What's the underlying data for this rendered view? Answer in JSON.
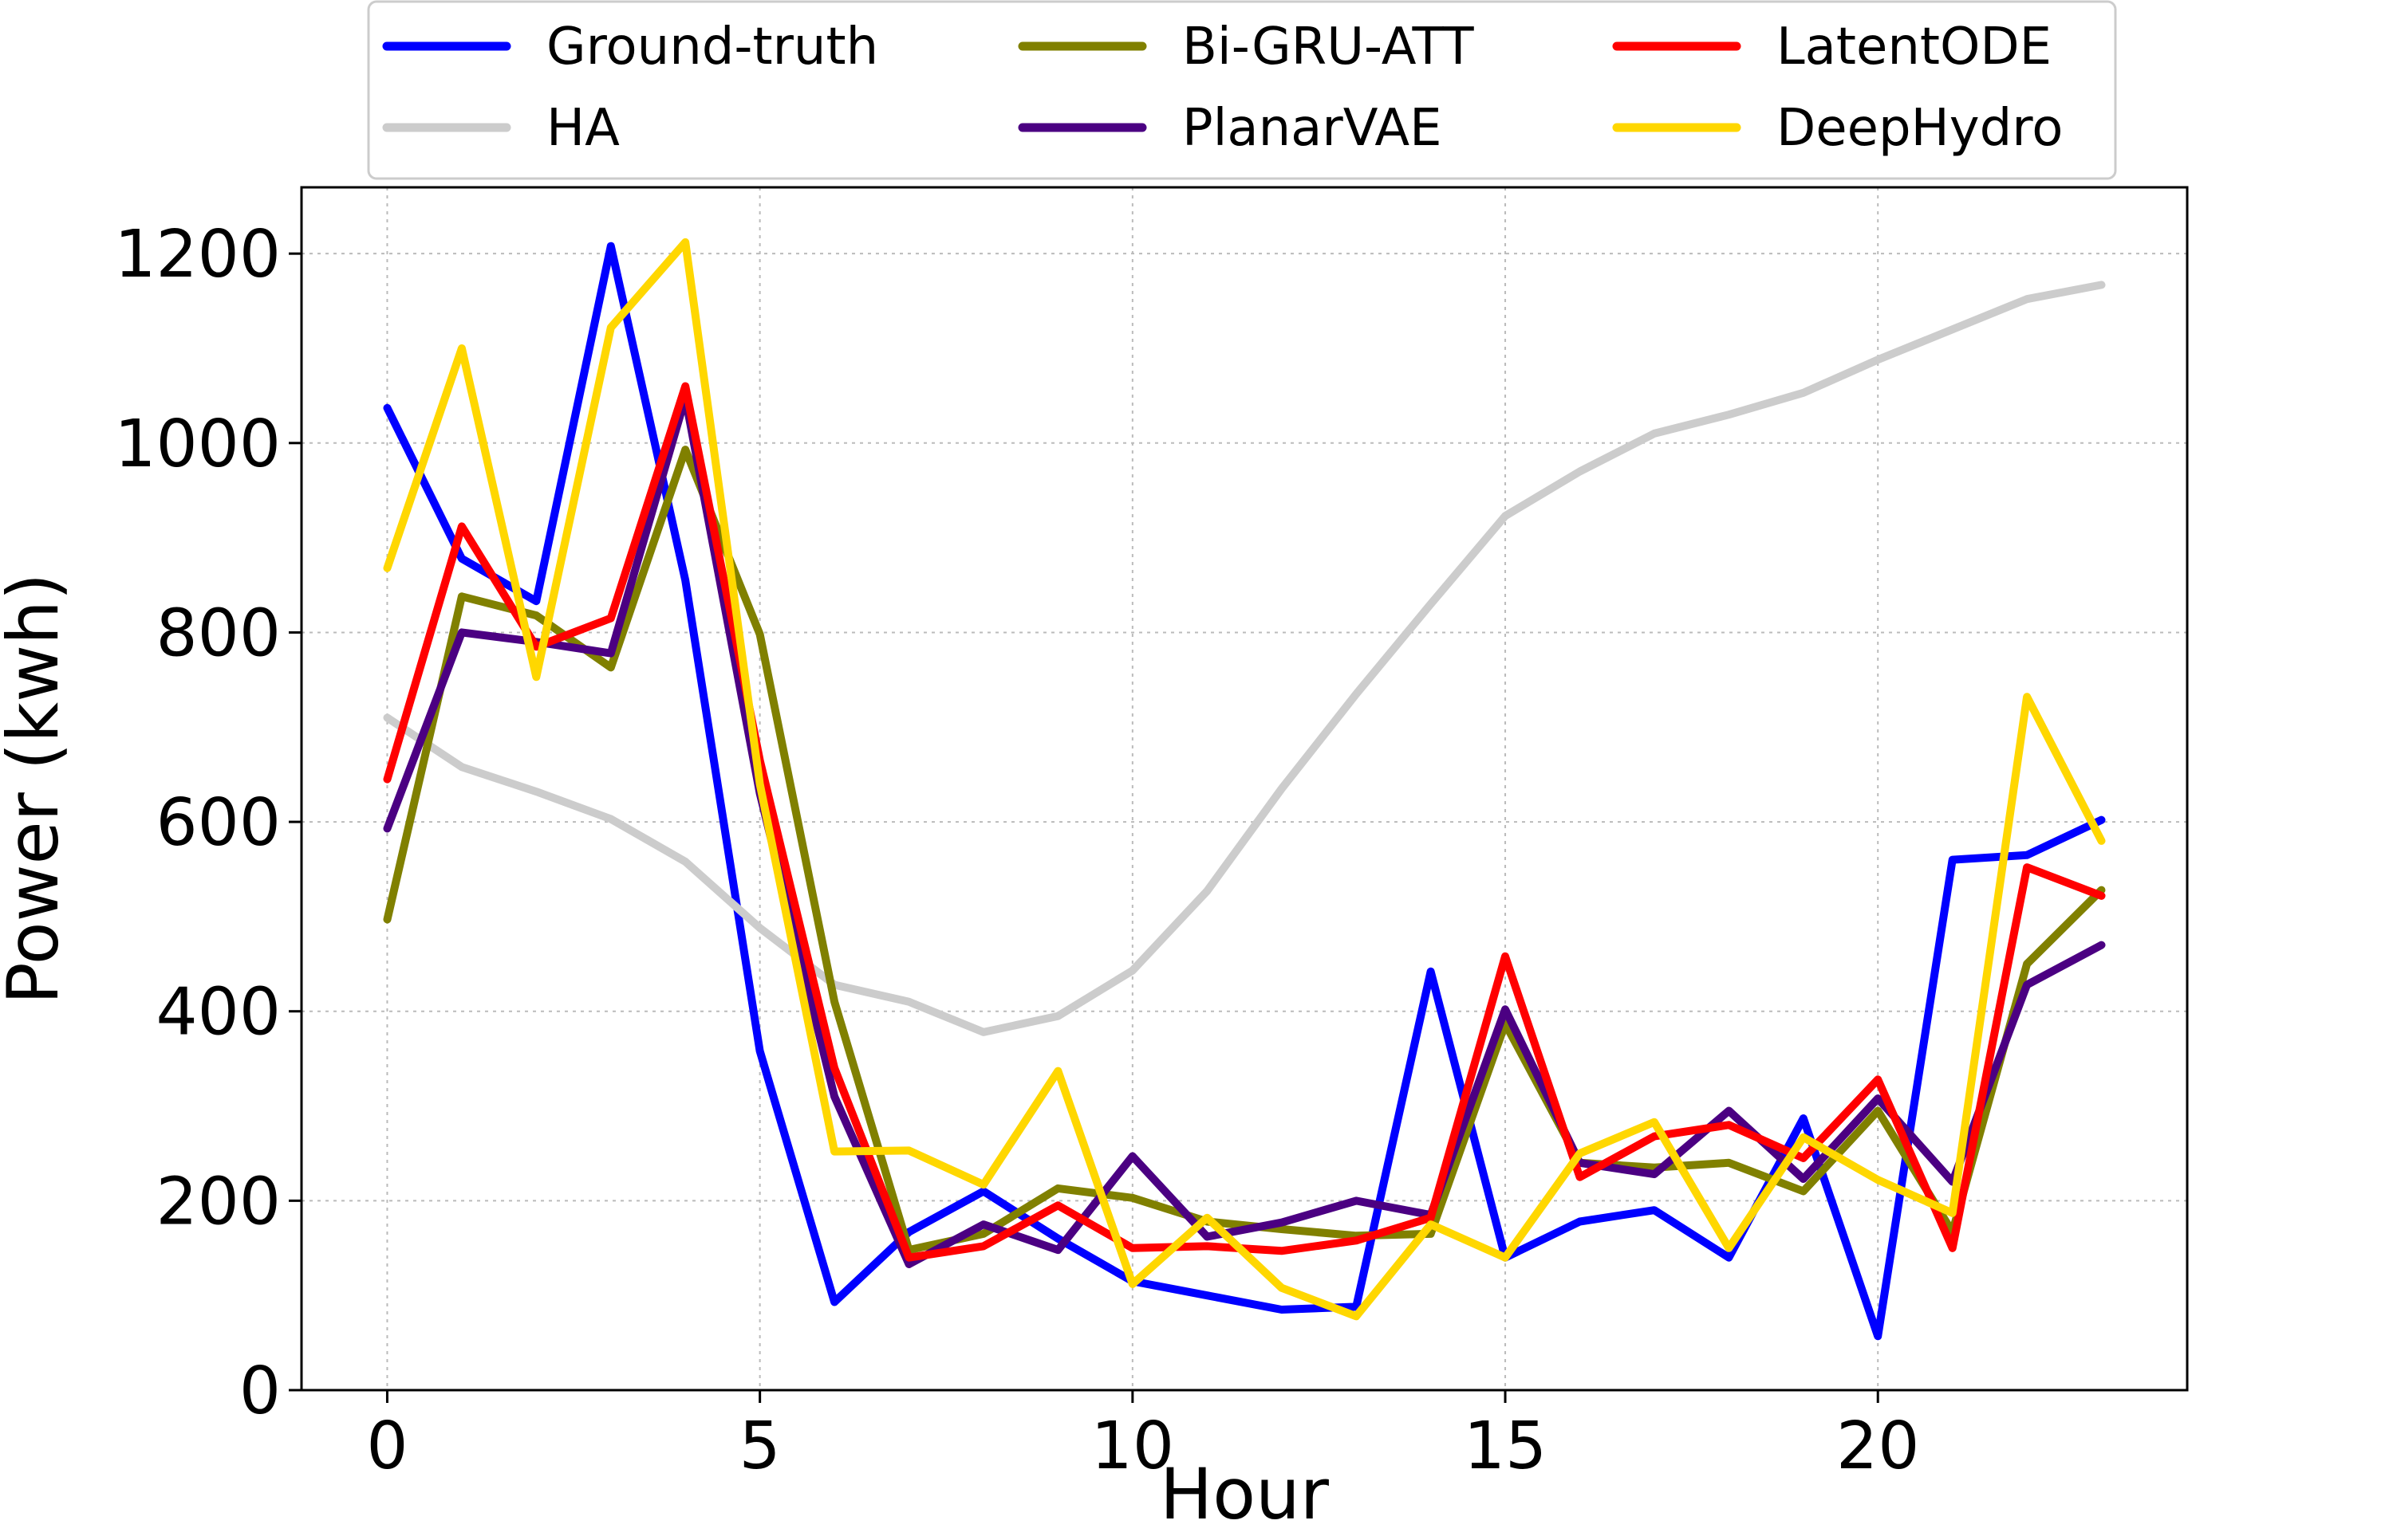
{
  "chart_data": {
    "type": "line",
    "xlabel": "Hour",
    "ylabel": "Power (kwh)",
    "xlim": [
      -1.15,
      24.15
    ],
    "ylim": [
      0,
      1270
    ],
    "xticks": [
      0,
      5,
      10,
      15,
      20
    ],
    "yticks": [
      0,
      200,
      400,
      600,
      800,
      1000,
      1200
    ],
    "grid": true,
    "legend_placement": "top",
    "x": [
      0,
      1,
      2,
      3,
      4,
      5,
      6,
      7,
      8,
      9,
      10,
      11,
      12,
      13,
      14,
      15,
      16,
      17,
      18,
      19,
      20,
      21,
      22,
      23
    ],
    "series": [
      {
        "name": "Ground-truth",
        "color": "#0000ff",
        "values": [
          1037,
          878,
          833,
          1208,
          855,
          358,
          93,
          167,
          210,
          160,
          115,
          100,
          85,
          88,
          442,
          140,
          178,
          190,
          140,
          287,
          57,
          560,
          565,
          602
        ]
      },
      {
        "name": "HA",
        "color": "#cccccc",
        "values": [
          710,
          658,
          632,
          603,
          558,
          488,
          428,
          410,
          378,
          395,
          443,
          527,
          635,
          735,
          830,
          923,
          970,
          1010,
          1030,
          1053,
          1088,
          1120,
          1152,
          1167
        ]
      },
      {
        "name": "Bi-GRU-ATT",
        "color": "#808000",
        "values": [
          497,
          838,
          818,
          763,
          993,
          798,
          410,
          148,
          165,
          213,
          203,
          178,
          170,
          163,
          165,
          387,
          240,
          235,
          240,
          210,
          295,
          167,
          450,
          528
        ]
      },
      {
        "name": "PlanarVAE",
        "color": "#4b0082",
        "values": [
          593,
          800,
          790,
          778,
          1048,
          630,
          310,
          133,
          175,
          148,
          247,
          162,
          177,
          200,
          185,
          402,
          240,
          228,
          295,
          223,
          308,
          220,
          428,
          470
        ]
      },
      {
        "name": "LatentODE",
        "color": "#ff0000",
        "values": [
          645,
          912,
          785,
          815,
          1060,
          665,
          340,
          140,
          152,
          195,
          150,
          152,
          147,
          158,
          182,
          458,
          225,
          268,
          280,
          245,
          328,
          150,
          552,
          522
        ]
      },
      {
        "name": "DeepHydro",
        "color": "#ffd700",
        "values": [
          868,
          1100,
          753,
          1122,
          1212,
          640,
          252,
          253,
          217,
          337,
          112,
          182,
          108,
          78,
          175,
          140,
          250,
          283,
          150,
          267,
          222,
          187,
          732,
          580
        ]
      }
    ]
  }
}
